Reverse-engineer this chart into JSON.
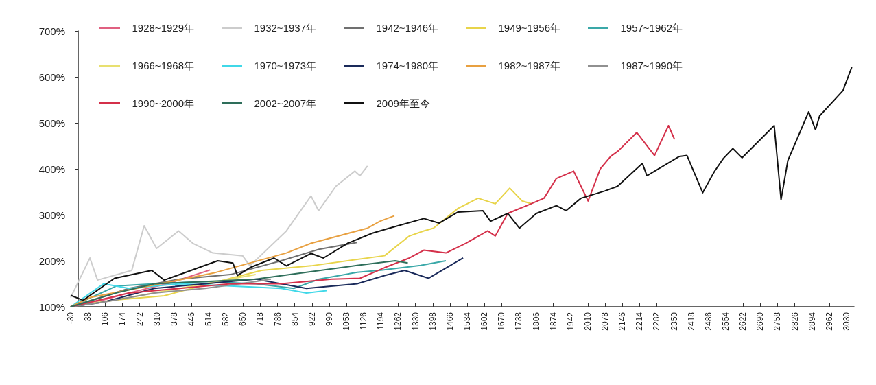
{
  "chart_data": {
    "type": "line",
    "legend": "top left",
    "grid": false,
    "marker": "none",
    "line_style": "solid",
    "xlim": [
      -30,
      3060
    ],
    "xticks": [
      -30,
      38,
      106,
      174,
      242,
      310,
      378,
      446,
      514,
      582,
      650,
      718,
      786,
      854,
      922,
      990,
      1058,
      1126,
      1194,
      1262,
      1330,
      1398,
      1466,
      1534,
      1602,
      1670,
      1738,
      1806,
      1874,
      1942,
      2010,
      2078,
      2146,
      2214,
      2282,
      2350,
      2418,
      2486,
      2554,
      2622,
      2690,
      2758,
      2826,
      2894,
      2962,
      3030
    ],
    "ylim": [
      100,
      700
    ],
    "yticks": [
      {
        "value": 100,
        "label": "100%"
      },
      {
        "value": 200,
        "label": "200%"
      },
      {
        "value": 300,
        "label": "300%"
      },
      {
        "value": 400,
        "label": "400%"
      },
      {
        "value": 500,
        "label": "500%"
      },
      {
        "value": 600,
        "label": "600%"
      },
      {
        "value": 700,
        "label": "700%"
      }
    ],
    "series": [
      {
        "name": "1928~1929年",
        "color": "#e06080",
        "x": [
          -30,
          100,
          200,
          350,
          520
        ],
        "values": [
          100,
          115,
          130,
          150,
          180
        ]
      },
      {
        "name": "1932~1937年",
        "color": "#cccccc",
        "x": [
          -30,
          46,
          76,
          211,
          260,
          309,
          396,
          452,
          531,
          648,
          677,
          821,
          918,
          948,
          1016,
          1091,
          1111,
          1141
        ],
        "values": [
          120,
          206,
          158,
          179,
          276,
          227,
          265,
          238,
          217,
          211,
          189,
          265,
          341,
          309,
          362,
          395,
          385,
          406
        ]
      },
      {
        "name": "1942~1946年",
        "color": "#707070",
        "x": [
          -30,
          200,
          400,
          600,
          800,
          950,
          1100
        ],
        "values": [
          100,
          140,
          160,
          170,
          200,
          225,
          240
        ]
      },
      {
        "name": "1949~1956年",
        "color": "#e8d44a",
        "x": [
          -30,
          150,
          339,
          531,
          723,
          918,
          1208,
          1306,
          1363,
          1401,
          1498,
          1577,
          1645,
          1702,
          1751,
          1789
        ],
        "values": [
          100,
          115,
          124,
          152,
          179,
          189,
          211,
          254,
          265,
          271,
          314,
          336,
          324,
          358,
          330,
          324
        ]
      },
      {
        "name": "1957~1962年",
        "color": "#3aa8a8",
        "x": [
          -30,
          150,
          300,
          500,
          700,
          850,
          950,
          1100,
          1200,
          1350,
          1450
        ],
        "values": [
          100,
          145,
          150,
          155,
          150,
          140,
          160,
          175,
          180,
          190,
          200
        ]
      },
      {
        "name": "1966~1968年",
        "color": "#e8e070",
        "x": [
          -30,
          200,
          400,
          600,
          700
        ],
        "values": [
          100,
          120,
          140,
          160,
          170
        ]
      },
      {
        "name": "1970~1973年",
        "color": "#40d8e8",
        "x": [
          -30,
          100,
          200,
          400,
          600,
          800,
          900,
          980
        ],
        "values": [
          100,
          150,
          140,
          150,
          145,
          140,
          130,
          135
        ]
      },
      {
        "name": "1974~1980年",
        "color": "#1a2a5a",
        "x": [
          -30,
          100,
          300,
          500,
          700,
          900,
          1100,
          1208,
          1287,
          1382,
          1518
        ],
        "values": [
          100,
          110,
          140,
          150,
          160,
          140,
          150,
          168,
          179,
          162,
          206
        ]
      },
      {
        "name": "1982~1987年",
        "color": "#e8a040",
        "x": [
          -30,
          46,
          241,
          531,
          821,
          918,
          1141,
          1190,
          1247
        ],
        "values": [
          100,
          120,
          141,
          173,
          217,
          238,
          271,
          286,
          298
        ]
      },
      {
        "name": "1987~1990年",
        "color": "#909090",
        "x": [
          -30,
          100,
          300,
          500,
          700,
          760
        ],
        "values": [
          100,
          110,
          130,
          140,
          155,
          160
        ]
      },
      {
        "name": "1990~2000年",
        "color": "#d4304a",
        "x": [
          -30,
          200,
          400,
          600,
          800,
          1000,
          1111,
          1208,
          1306,
          1363,
          1450,
          1528,
          1615,
          1645,
          1694,
          1769,
          1837,
          1886,
          1954,
          1983,
          2011,
          2059,
          2100,
          2130,
          2203,
          2273,
          2328,
          2352
        ],
        "values": [
          100,
          130,
          140,
          150,
          150,
          160,
          162,
          185,
          206,
          223,
          217,
          238,
          265,
          254,
          303,
          320,
          336,
          379,
          395,
          362,
          330,
          400,
          427,
          439,
          479,
          429,
          494,
          464
        ]
      },
      {
        "name": "2002~2007年",
        "color": "#2e6e5a",
        "x": [
          -30,
          150,
          300,
          500,
          700,
          900,
          1100,
          1250,
          1300
        ],
        "values": [
          100,
          130,
          150,
          155,
          160,
          175,
          190,
          200,
          195
        ]
      },
      {
        "name": "2009年至今",
        "color": "#111111",
        "x": [
          -30,
          19,
          143,
          290,
          339,
          550,
          610,
          628,
          677,
          772,
          821,
          918,
          967,
          1062,
          1160,
          1227,
          1363,
          1423,
          1498,
          1596,
          1626,
          1694,
          1740,
          1807,
          1886,
          1924,
          1983,
          2078,
          2127,
          2225,
          2243,
          2371,
          2401,
          2463,
          2509,
          2545,
          2582,
          2618,
          2745,
          2772,
          2799,
          2881,
          2908,
          2924,
          3016,
          3051
        ],
        "values": [
          125,
          114,
          162,
          179,
          158,
          200,
          195,
          168,
          185,
          206,
          189,
          216,
          206,
          238,
          260,
          271,
          292,
          282,
          306,
          309,
          286,
          303,
          271,
          303,
          320,
          309,
          336,
          352,
          362,
          412,
          385,
          427,
          429,
          348,
          394,
          423,
          444,
          424,
          494,
          333,
          418,
          524,
          485,
          515,
          570,
          621
        ]
      }
    ]
  }
}
